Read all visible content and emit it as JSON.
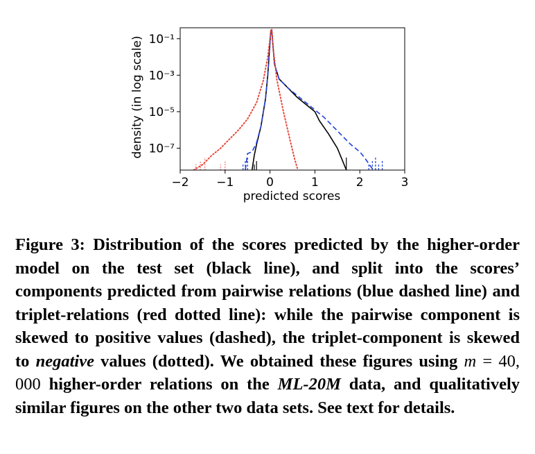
{
  "chart_data": {
    "type": "line",
    "ylabel": "density (in log scale)",
    "xlabel": "predicted scores",
    "xlim": [
      -2,
      3
    ],
    "ylim_log10": [
      -8.2,
      -0.4
    ],
    "x_ticks": [
      -2,
      -1,
      0,
      1,
      2,
      3
    ],
    "x_tick_labels": [
      "−2",
      "−1",
      "0",
      "1",
      "2",
      "3"
    ],
    "y_ticks_log10": [
      -1,
      -3,
      -5,
      -7
    ],
    "y_tick_labels": [
      "10⁻¹",
      "10⁻³",
      "10⁻⁵",
      "10⁻⁷"
    ],
    "series": [
      {
        "name": "higher-order model (test set)",
        "color": "#000000",
        "style": "solid",
        "points": [
          [
            -0.4,
            -8.2
          ],
          [
            -0.35,
            -7.4
          ],
          [
            -0.3,
            -6.8
          ],
          [
            -0.2,
            -5.8
          ],
          [
            -0.1,
            -4.3
          ],
          [
            -0.05,
            -3.0
          ],
          [
            0.0,
            -1.2
          ],
          [
            0.02,
            -0.55
          ],
          [
            0.04,
            -0.55
          ],
          [
            0.06,
            -1.2
          ],
          [
            0.1,
            -2.4
          ],
          [
            0.2,
            -3.2
          ],
          [
            0.4,
            -3.7
          ],
          [
            0.6,
            -4.2
          ],
          [
            0.8,
            -4.6
          ],
          [
            1.0,
            -5.0
          ],
          [
            1.1,
            -5.5
          ],
          [
            1.3,
            -6.2
          ],
          [
            1.5,
            -7.0
          ],
          [
            1.6,
            -7.6
          ],
          [
            1.7,
            -8.2
          ]
        ]
      },
      {
        "name": "pairwise component",
        "color": "#1f3fd8",
        "style": "dashed",
        "points": [
          [
            -0.55,
            -8.2
          ],
          [
            -0.5,
            -7.3
          ],
          [
            -0.4,
            -7.2
          ],
          [
            -0.3,
            -6.7
          ],
          [
            -0.2,
            -5.8
          ],
          [
            -0.1,
            -4.3
          ],
          [
            -0.05,
            -3.0
          ],
          [
            0.0,
            -1.2
          ],
          [
            0.02,
            -0.55
          ],
          [
            0.04,
            -0.55
          ],
          [
            0.06,
            -1.2
          ],
          [
            0.1,
            -2.4
          ],
          [
            0.2,
            -3.2
          ],
          [
            0.4,
            -3.7
          ],
          [
            0.6,
            -4.1
          ],
          [
            0.8,
            -4.5
          ],
          [
            1.0,
            -4.9
          ],
          [
            1.2,
            -5.3
          ],
          [
            1.4,
            -5.8
          ],
          [
            1.6,
            -6.3
          ],
          [
            1.8,
            -6.8
          ],
          [
            2.0,
            -7.2
          ],
          [
            2.1,
            -7.5
          ],
          [
            2.3,
            -8.2
          ]
        ]
      },
      {
        "name": "triplet component",
        "color": "#e8493b",
        "style": "dotted",
        "points": [
          [
            -1.7,
            -8.2
          ],
          [
            -1.5,
            -7.9
          ],
          [
            -1.3,
            -7.4
          ],
          [
            -1.1,
            -7.0
          ],
          [
            -0.9,
            -6.5
          ],
          [
            -0.7,
            -6.0
          ],
          [
            -0.5,
            -5.4
          ],
          [
            -0.3,
            -4.5
          ],
          [
            -0.15,
            -3.3
          ],
          [
            -0.05,
            -2.0
          ],
          [
            0.0,
            -1.0
          ],
          [
            0.02,
            -0.5
          ],
          [
            0.04,
            -0.5
          ],
          [
            0.07,
            -1.5
          ],
          [
            0.15,
            -3.2
          ],
          [
            0.3,
            -5.0
          ],
          [
            0.45,
            -6.6
          ],
          [
            0.55,
            -7.6
          ],
          [
            0.62,
            -8.2
          ]
        ]
      }
    ],
    "sparse_spikes": {
      "red": [
        -1.65,
        -1.55,
        -1.45,
        -1.1,
        -1.0
      ],
      "blue": [
        -0.6,
        -0.55,
        -0.5,
        2.2,
        2.28,
        2.35,
        2.42,
        2.5
      ],
      "black": [
        -0.35,
        -0.3,
        1.7
      ]
    }
  },
  "caption": {
    "label": "Figure 3:",
    "part1": " Distribution of the scores predicted by the higher-order model on the test set (black line), and split into the scores’ components predicted from pairwise relations (blue dashed line) and triplet-relations (red dotted line): while the pairwise component is skewed to positive values (dashed), the triplet-component is skewed to ",
    "negative": "negative",
    "part2": " values (dotted). We obtained these figures using ",
    "m": "m",
    "eq": " = ",
    "num": "40, 000",
    "part3": " higher-order relations on the ",
    "dataset": "ML-20M",
    "part4": " data, and qualitatively similar figures on the other two data sets. See text for details."
  }
}
